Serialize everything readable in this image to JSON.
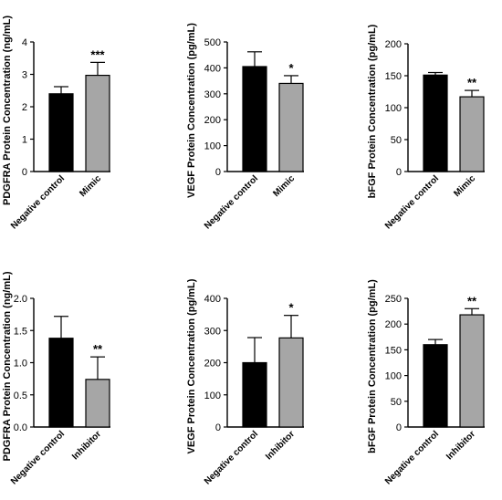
{
  "chart_data": [
    {
      "type": "bar",
      "ylabel": "PDGFRA Protein Concentration (ng/mL)",
      "ylim": [
        0,
        4
      ],
      "yticks": [
        "0",
        "1",
        "2",
        "3",
        "4"
      ],
      "categories": [
        "Negative control",
        "Mimic"
      ],
      "values": [
        2.4,
        2.97
      ],
      "errors": [
        0.22,
        0.4
      ],
      "significance": [
        "",
        "***"
      ],
      "colors": [
        "#000000",
        "#a6a6a6"
      ]
    },
    {
      "type": "bar",
      "ylabel": "VEGF Protein Concentration (pg/mL)",
      "ylim": [
        0,
        500
      ],
      "yticks": [
        "0",
        "100",
        "200",
        "300",
        "400",
        "500"
      ],
      "categories": [
        "Negative control",
        "Mimic"
      ],
      "values": [
        405,
        340
      ],
      "errors": [
        57,
        30
      ],
      "significance": [
        "",
        "*"
      ],
      "colors": [
        "#000000",
        "#a6a6a6"
      ]
    },
    {
      "type": "bar",
      "ylabel": "bFGF Protein Concentration (pg/mL)",
      "ylim": [
        0,
        200
      ],
      "yticks": [
        "0",
        "50",
        "100",
        "150",
        "200"
      ],
      "categories": [
        "Negative control",
        "Mimic"
      ],
      "values": [
        151,
        117
      ],
      "errors": [
        4,
        10
      ],
      "significance": [
        "",
        "**"
      ],
      "colors": [
        "#000000",
        "#a6a6a6"
      ]
    },
    {
      "type": "bar",
      "ylabel": "PDGFRA Protein Concentration (ng/mL)",
      "ylim": [
        0,
        2.0
      ],
      "yticks": [
        "0.0",
        "0.5",
        "1.0",
        "1.5",
        "2.0"
      ],
      "categories": [
        "Negative control",
        "Inhibitor"
      ],
      "values": [
        1.38,
        0.74
      ],
      "errors": [
        0.34,
        0.35
      ],
      "significance": [
        "",
        "**"
      ],
      "colors": [
        "#000000",
        "#a6a6a6"
      ]
    },
    {
      "type": "bar",
      "ylabel": "VEGF Protein Concentration (pg/mL)",
      "ylim": [
        0,
        400
      ],
      "yticks": [
        "0",
        "100",
        "200",
        "300",
        "400"
      ],
      "categories": [
        "Negative control",
        "Inhibitor"
      ],
      "values": [
        200,
        277
      ],
      "errors": [
        78,
        70
      ],
      "significance": [
        "",
        "*"
      ],
      "colors": [
        "#000000",
        "#a6a6a6"
      ]
    },
    {
      "type": "bar",
      "ylabel": "bFGF Protein Concentration (pg/mL)",
      "ylim": [
        0,
        250
      ],
      "yticks": [
        "0",
        "50",
        "100",
        "150",
        "200",
        "250"
      ],
      "categories": [
        "Negative control",
        "Inhibitor"
      ],
      "values": [
        160,
        218
      ],
      "errors": [
        10,
        12
      ],
      "significance": [
        "",
        "**"
      ],
      "colors": [
        "#000000",
        "#a6a6a6"
      ]
    }
  ]
}
